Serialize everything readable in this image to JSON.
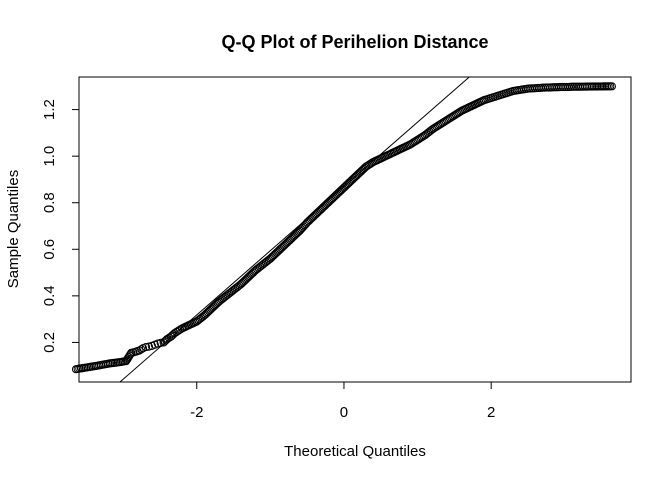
{
  "chart_data": {
    "type": "scatter",
    "title": "Q-Q Plot of Perihelion Distance",
    "xlabel": "Theoretical Quantiles",
    "ylabel": "Sample Quantiles",
    "xlim": [
      -3.6,
      3.9
    ],
    "ylim": [
      0.03,
      1.34
    ],
    "x_ticks": [
      -2,
      0,
      2
    ],
    "x_tick_labels": [
      "-2",
      "0",
      "2"
    ],
    "y_ticks": [
      0.2,
      0.4,
      0.6,
      0.8,
      1.0,
      1.2
    ],
    "y_tick_labels": [
      "0.2",
      "0.4",
      "0.6",
      "0.8",
      "1.0",
      "1.2"
    ],
    "grid": false,
    "reference_line": {
      "intercept": 0.87,
      "slope": 0.276
    },
    "points": {
      "x": [
        -3.64,
        -3.35,
        -3.18,
        -3.05,
        -2.96,
        -2.89,
        -2.83,
        -2.78,
        -2.73,
        -2.69,
        -2.65,
        -2.61,
        -2.57,
        -2.53,
        -2.49,
        -2.45,
        -2.4,
        -2.35,
        -2.3,
        -2.25,
        -2.2,
        -2.1,
        -2.0,
        -1.9,
        -1.8,
        -1.7,
        -1.6,
        -1.5,
        -1.4,
        -1.3,
        -1.2,
        -1.1,
        -1.0,
        -0.9,
        -0.8,
        -0.7,
        -0.6,
        -0.5,
        -0.4,
        -0.3,
        -0.2,
        -0.1,
        0.0,
        0.1,
        0.2,
        0.3,
        0.4,
        0.5,
        0.6,
        0.7,
        0.8,
        0.9,
        1.0,
        1.1,
        1.2,
        1.3,
        1.4,
        1.5,
        1.6,
        1.7,
        1.8,
        1.9,
        2.0,
        2.1,
        2.2,
        2.3,
        2.4,
        2.5,
        2.6,
        2.65,
        2.7,
        2.75,
        2.8,
        2.85,
        2.9,
        2.95,
        3.0,
        3.05,
        3.1,
        3.18,
        3.35,
        3.64
      ],
      "y": [
        0.085,
        0.1,
        0.11,
        0.115,
        0.12,
        0.155,
        0.16,
        0.165,
        0.175,
        0.18,
        0.182,
        0.185,
        0.19,
        0.195,
        0.198,
        0.2,
        0.215,
        0.225,
        0.24,
        0.25,
        0.26,
        0.275,
        0.29,
        0.315,
        0.345,
        0.375,
        0.4,
        0.425,
        0.45,
        0.48,
        0.51,
        0.535,
        0.56,
        0.59,
        0.62,
        0.65,
        0.68,
        0.715,
        0.745,
        0.775,
        0.805,
        0.835,
        0.865,
        0.895,
        0.925,
        0.955,
        0.975,
        0.99,
        1.005,
        1.02,
        1.035,
        1.05,
        1.07,
        1.09,
        1.115,
        1.135,
        1.155,
        1.175,
        1.195,
        1.21,
        1.225,
        1.24,
        1.25,
        1.26,
        1.27,
        1.28,
        1.285,
        1.29,
        1.292,
        1.293,
        1.294,
        1.295,
        1.295,
        1.296,
        1.296,
        1.297,
        1.297,
        1.297,
        1.298,
        1.298,
        1.299,
        1.3
      ]
    }
  }
}
